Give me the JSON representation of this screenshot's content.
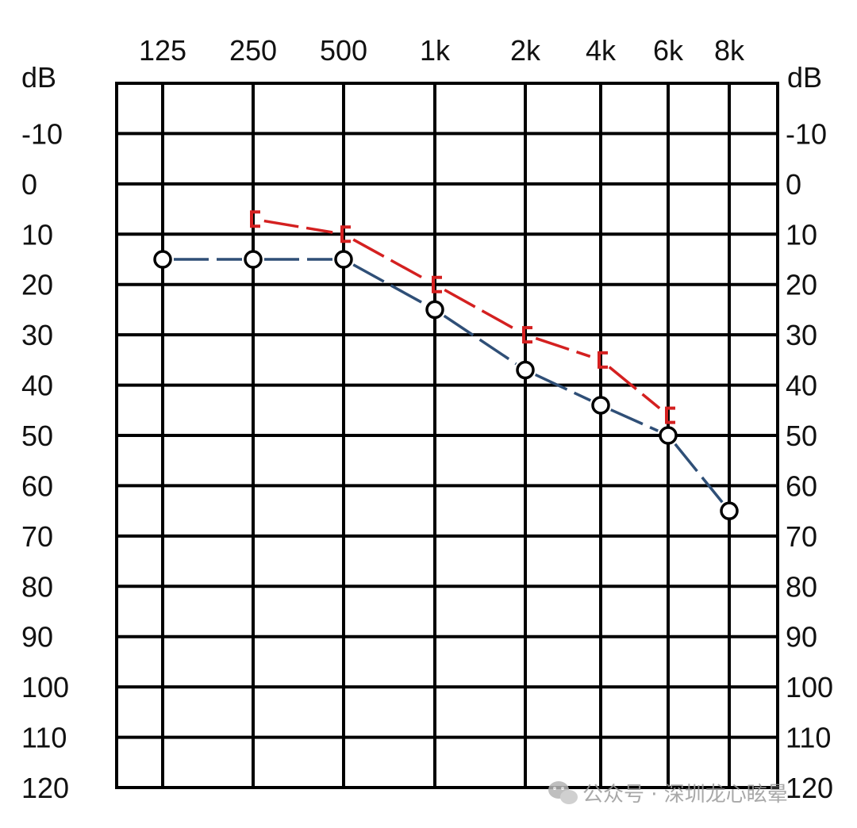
{
  "chart_data": {
    "type": "line",
    "x_tick_labels": [
      "125",
      "250",
      "500",
      "1k",
      "2k",
      "4k",
      "6k",
      "8k"
    ],
    "y_unit_label": "dB",
    "y_ticks": [
      -10,
      0,
      10,
      20,
      30,
      40,
      50,
      60,
      70,
      80,
      90,
      100,
      110,
      120
    ],
    "ylim": [
      -20,
      120
    ],
    "y_inverted": true,
    "grid": true,
    "series": [
      {
        "marker": "circle",
        "color": "#2f4f77",
        "marker_color": "#000000",
        "line_style": "dashed",
        "points": [
          {
            "x": "125",
            "y": 15
          },
          {
            "x": "250",
            "y": 15
          },
          {
            "x": "500",
            "y": 15
          },
          {
            "x": "1k",
            "y": 25
          },
          {
            "x": "2k",
            "y": 37
          },
          {
            "x": "4k",
            "y": 44
          },
          {
            "x": "6k",
            "y": 50
          },
          {
            "x": "8k",
            "y": 65
          }
        ]
      },
      {
        "marker": "bracket",
        "color": "#d42020",
        "marker_color": "#d42020",
        "line_style": "dashed",
        "points": [
          {
            "x": "250",
            "y": 7
          },
          {
            "x": "500",
            "y": 10
          },
          {
            "x": "1k",
            "y": 20
          },
          {
            "x": "2k",
            "y": 30
          },
          {
            "x": "4k",
            "y": 35
          },
          {
            "x": "6k",
            "y": 46
          }
        ]
      }
    ]
  },
  "watermark": {
    "icon": "wechat-icon",
    "text": "公众号 · 深圳龙心眩晕"
  }
}
